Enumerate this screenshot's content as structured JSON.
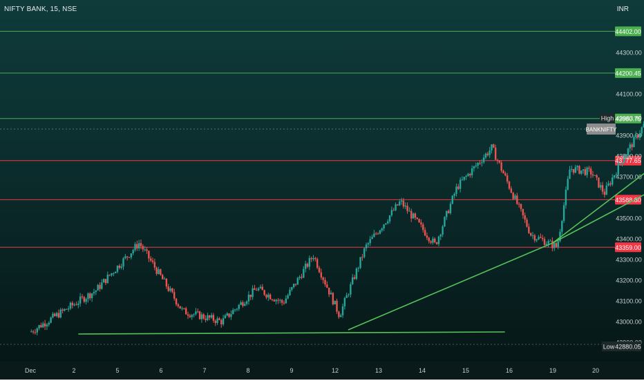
{
  "header": {
    "symbol_line": "NIFTY BANK, 15, NSE",
    "currency": "INR"
  },
  "price_axis": {
    "ticks": [
      "44300.00",
      "44100.00",
      "43900.00",
      "43800.00",
      "43700.00",
      "43500.00",
      "43400.00",
      "43300.00",
      "43200.00",
      "43100.00",
      "43000.00",
      "42900.00"
    ]
  },
  "time_axis": {
    "ticks": [
      "Dec",
      "2",
      "5",
      "6",
      "7",
      "8",
      "9",
      "12",
      "13",
      "14",
      "15",
      "16",
      "19",
      "20"
    ]
  },
  "levels": [
    {
      "label": "44402.00",
      "price": 44402.0,
      "color": "#4caf50"
    },
    {
      "label": "44200.45",
      "price": 44200.45,
      "color": "#4caf50"
    },
    {
      "label": "43980.75",
      "price": 43980.75,
      "color": "#4caf50"
    },
    {
      "label": "43777.65",
      "price": 43777.65,
      "color": "#f23645"
    },
    {
      "label": "43588.80",
      "price": 43588.8,
      "color": "#f23645"
    },
    {
      "label": "43359.00",
      "price": 43359.0,
      "color": "#f23645"
    }
  ],
  "markers": {
    "high_tag": "High",
    "high_value": "43983.80",
    "high_price": 43983.8,
    "current_tag": "BANKNIFTY",
    "current_price": 43930.0,
    "low_tag": "Low",
    "low_value": "42880.05",
    "low_price": 42880.05
  },
  "candles_path": [
    [
      0,
      42950
    ],
    [
      1.5,
      43150
    ],
    [
      2.5,
      43380
    ],
    [
      3.5,
      43050
    ],
    [
      4.4,
      43000
    ],
    [
      5.2,
      43160
    ],
    [
      5.8,
      43090
    ],
    [
      6.5,
      43320
    ],
    [
      7.1,
      43030
    ],
    [
      7.7,
      43360
    ],
    [
      8.5,
      43580
    ],
    [
      9.3,
      43370
    ],
    [
      9.8,
      43650
    ],
    [
      10.6,
      43840
    ],
    [
      11.5,
      43420
    ],
    [
      12.1,
      43360
    ],
    [
      12.4,
      43740
    ],
    [
      12.9,
      43720
    ],
    [
      13.2,
      43620
    ],
    [
      13.6,
      43780
    ],
    [
      13.9,
      43880
    ],
    [
      14.2,
      43980
    ],
    [
      14.5,
      43880
    ],
    [
      14.8,
      43960
    ],
    [
      15.0,
      43930
    ]
  ],
  "trend_lines": [
    {
      "p1": [
        7.3,
        42960
      ],
      "p2": [
        12.0,
        43380
      ]
    },
    {
      "p1": [
        12.0,
        43380
      ],
      "p2": [
        18.4,
        44400
      ]
    },
    {
      "p1": [
        12.0,
        43380
      ],
      "p2": [
        19.0,
        44155
      ]
    },
    {
      "p1": [
        1.1,
        42940
      ],
      "p2": [
        10.9,
        42950
      ]
    }
  ],
  "colors": {
    "up": "#26a69a",
    "down": "#ef5350",
    "trend": "#55c25b"
  }
}
